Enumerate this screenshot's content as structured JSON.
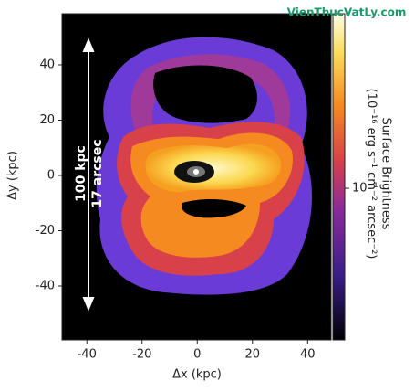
{
  "chart_data": {
    "type": "image",
    "xlabel": "Δx (kpc)",
    "ylabel": "Δy (kpc)",
    "xlim": [
      -49,
      48.5
    ],
    "ylim": [
      -59.5,
      58.5
    ],
    "xticks": [
      -40,
      -20,
      0,
      20,
      40
    ],
    "yticks": [
      -40,
      -20,
      0,
      20,
      40
    ],
    "annotations": [
      "100 kpc",
      "17 arcsec"
    ],
    "colorbar": {
      "label": [
        "Surface Brightness",
        "(10⁻¹⁶ erg s⁻¹ cm⁻² arcsec⁻²)"
      ],
      "scale": "log",
      "lim": [
        0.03,
        0.4
      ],
      "ticks": [
        {
          "value": 0.1,
          "label": "10⁻¹"
        }
      ]
    },
    "watermark": "VienThucVatLy.com"
  }
}
